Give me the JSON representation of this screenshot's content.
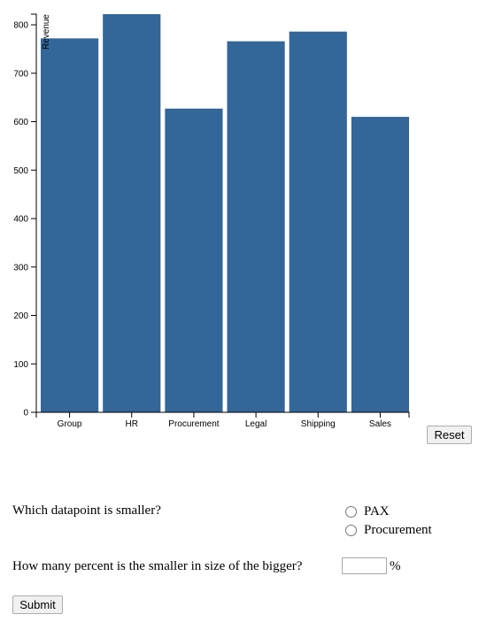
{
  "chart_data": {
    "type": "bar",
    "categories": [
      "Group",
      "HR",
      "Procurement",
      "Legal",
      "Shipping",
      "Sales"
    ],
    "values": [
      772,
      822,
      627,
      766,
      786,
      610
    ],
    "title": "",
    "xlabel": "",
    "ylabel": "Revenue",
    "ylim": [
      0,
      822
    ],
    "yticks": [
      0,
      100,
      200,
      300,
      400,
      500,
      600,
      700,
      800
    ],
    "bar_color": "#336699",
    "grid": false
  },
  "controls": {
    "reset_label": "Reset",
    "question1": "Which datapoint is smaller?",
    "options": [
      "PAX",
      "Procurement"
    ],
    "question2": "How many percent is the smaller in size of the bigger?",
    "percent_sign": "%",
    "submit_label": "Submit"
  }
}
